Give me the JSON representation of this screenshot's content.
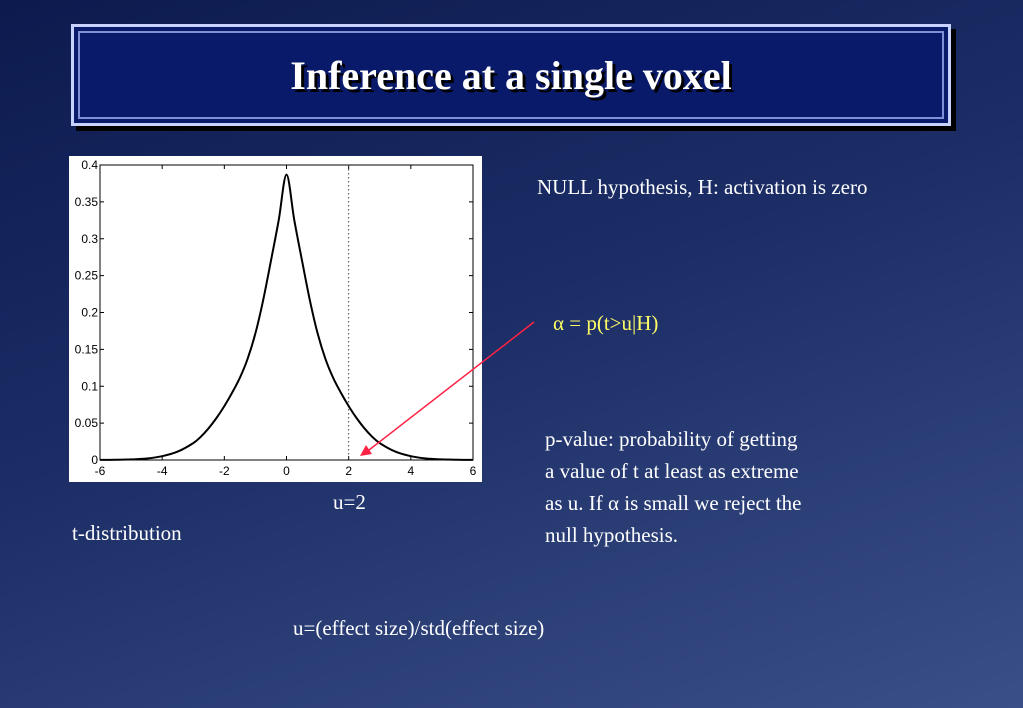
{
  "slide": {
    "title": "Inference at a single voxel",
    "null_hypothesis": "NULL hypothesis, H: activation is zero",
    "alpha_def": "α = p(t>u|H)",
    "pvalue_lines": [
      "p-value: probability of getting",
      "a value of t at least as extreme",
      "as u. If α is small we reject the",
      "null hypothesis."
    ],
    "u_label": "u=2",
    "dist_label": "t-distribution",
    "effect_size": "u=(effect size)/std(effect size)"
  },
  "colors": {
    "alpha_text": "#ffff66",
    "arrow": "#ff2244",
    "title_bg": "#0a1a6a"
  },
  "chart_data": {
    "type": "line",
    "title": "",
    "xlabel": "",
    "ylabel": "",
    "xlim": [
      -6,
      6
    ],
    "ylim": [
      0,
      0.4
    ],
    "x_ticks": [
      -6,
      -4,
      -2,
      0,
      2,
      4,
      6
    ],
    "y_ticks": [
      0,
      0.05,
      0.1,
      0.15,
      0.2,
      0.25,
      0.3,
      0.35,
      0.4
    ],
    "x_tick_labels": [
      "-6",
      "-4",
      "-2",
      "0",
      "2",
      "4",
      "6"
    ],
    "y_tick_labels": [
      "0",
      "0.05",
      "0.1",
      "0.15",
      "0.2",
      "0.25",
      "0.3",
      "0.35",
      "0.4"
    ],
    "threshold_x": 2,
    "grid": false,
    "series": [
      {
        "x": [
          -6,
          -5.5,
          -5,
          -4.5,
          -4,
          -3.5,
          -3,
          -2.75,
          -2.5,
          -2.25,
          -2,
          -1.75,
          -1.5,
          -1.25,
          -1,
          -0.75,
          -0.5,
          -0.25,
          0,
          0.25,
          0.5,
          0.75,
          1,
          1.25,
          1.5,
          1.75,
          2,
          2.25,
          2.5,
          2.75,
          3,
          3.5,
          4,
          4.5,
          5,
          5.5,
          6
        ],
        "y": [
          0.0001,
          0.0003,
          0.0008,
          0.002,
          0.0052,
          0.0114,
          0.0229,
          0.0318,
          0.0433,
          0.0571,
          0.0731,
          0.0912,
          0.1115,
          0.1374,
          0.1718,
          0.2169,
          0.2702,
          0.3254,
          0.387,
          0.3254,
          0.2702,
          0.2169,
          0.1718,
          0.1374,
          0.1115,
          0.0912,
          0.0731,
          0.0571,
          0.0433,
          0.0318,
          0.0229,
          0.0114,
          0.0052,
          0.002,
          0.0008,
          0.0003,
          0.0001
        ]
      }
    ]
  }
}
